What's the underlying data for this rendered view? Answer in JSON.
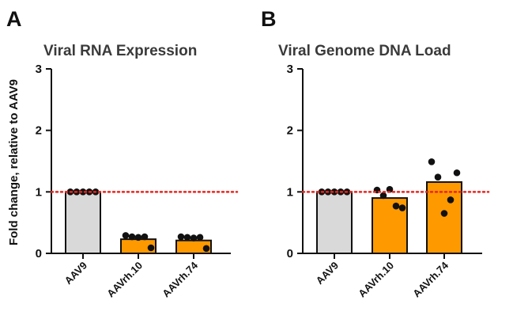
{
  "shared": {
    "ylabel": "Fold change, relative to AAV9",
    "reference_line": 1
  },
  "colors": {
    "control": "#d9d9d9",
    "treated": "#ff9900",
    "reference": "#e8241e"
  },
  "chart_data": [
    {
      "panel": "A",
      "type": "bar",
      "title": "Viral RNA Expression",
      "xlabel": "",
      "ylabel": "Fold change, relative to AAV9",
      "ylim": [
        0,
        3
      ],
      "yticks": [
        0,
        1,
        2,
        3
      ],
      "categories": [
        "AAV9",
        "AAVrh.10",
        "AAVrh.74"
      ],
      "values": [
        1.0,
        0.23,
        0.21
      ],
      "points": [
        [
          1,
          1,
          1,
          1,
          1
        ],
        [
          0.29,
          0.27,
          0.26,
          0.27,
          0.09
        ],
        [
          0.27,
          0.26,
          0.25,
          0.26,
          0.08
        ]
      ],
      "reference_line": 1,
      "grid": false
    },
    {
      "panel": "B",
      "type": "bar",
      "title": "Viral Genome DNA Load",
      "xlabel": "",
      "ylabel": "",
      "ylim": [
        0,
        3
      ],
      "yticks": [
        0,
        1,
        2,
        3
      ],
      "categories": [
        "AAV9",
        "AAVrh.10",
        "AAVrh.74"
      ],
      "values": [
        1.0,
        0.9,
        1.16
      ],
      "points": [
        [
          1,
          1,
          1,
          1,
          1
        ],
        [
          1.03,
          0.94,
          1.04,
          0.77,
          0.74
        ],
        [
          1.49,
          1.24,
          0.65,
          0.87,
          1.31
        ]
      ],
      "reference_line": 1,
      "grid": false
    }
  ]
}
